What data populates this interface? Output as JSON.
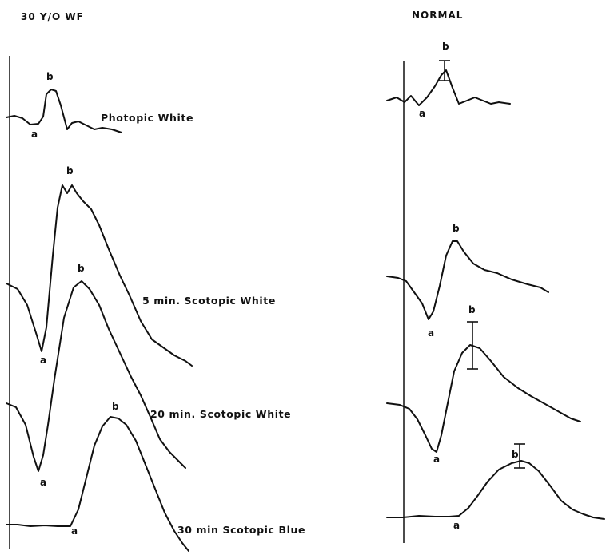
{
  "figure": {
    "left_title": "30 Y/O WF",
    "right_title": "NORMAL"
  },
  "chart_data": {
    "type": "line",
    "panels": [
      {
        "name": "30 Y/O WF",
        "traces": [
          {
            "label": "Photopic White",
            "a_label": "a",
            "b_label": "b",
            "pts": [
              [
                8,
                147
              ],
              [
                18,
                145
              ],
              [
                28,
                148
              ],
              [
                38,
                156
              ],
              [
                48,
                155
              ],
              [
                54,
                146
              ],
              [
                58,
                118
              ],
              [
                64,
                112
              ],
              [
                70,
                114
              ],
              [
                76,
                132
              ],
              [
                84,
                162
              ],
              [
                90,
                154
              ],
              [
                98,
                152
              ],
              [
                108,
                157
              ],
              [
                118,
                162
              ],
              [
                128,
                160
              ],
              [
                140,
                162
              ],
              [
                152,
                166
              ]
            ]
          },
          {
            "label": "5 min. Scotopic White",
            "a_label": "a",
            "b_label": "b",
            "pts": [
              [
                8,
                355
              ],
              [
                22,
                362
              ],
              [
                34,
                382
              ],
              [
                46,
                420
              ],
              [
                52,
                440
              ],
              [
                58,
                410
              ],
              [
                66,
                320
              ],
              [
                72,
                260
              ],
              [
                78,
                232
              ],
              [
                84,
                242
              ],
              [
                90,
                232
              ],
              [
                96,
                242
              ],
              [
                104,
                252
              ],
              [
                114,
                262
              ],
              [
                124,
                282
              ],
              [
                136,
                312
              ],
              [
                150,
                345
              ],
              [
                162,
                370
              ],
              [
                176,
                402
              ],
              [
                190,
                425
              ],
              [
                204,
                435
              ],
              [
                218,
                445
              ],
              [
                232,
                452
              ],
              [
                240,
                458
              ]
            ]
          },
          {
            "label": "20 min. Scotopic White",
            "a_label": "a",
            "b_label": "b",
            "pts": [
              [
                8,
                505
              ],
              [
                20,
                510
              ],
              [
                32,
                532
              ],
              [
                42,
                572
              ],
              [
                48,
                590
              ],
              [
                54,
                570
              ],
              [
                60,
                532
              ],
              [
                68,
                475
              ],
              [
                80,
                398
              ],
              [
                92,
                360
              ],
              [
                102,
                352
              ],
              [
                112,
                362
              ],
              [
                124,
                382
              ],
              [
                136,
                412
              ],
              [
                150,
                442
              ],
              [
                164,
                472
              ],
              [
                176,
                495
              ],
              [
                188,
                522
              ],
              [
                200,
                550
              ],
              [
                212,
                566
              ],
              [
                224,
                578
              ],
              [
                232,
                586
              ]
            ]
          },
          {
            "label": "30 min Scotopic Blue",
            "a_label": "a",
            "b_label": "b",
            "pts": [
              [
                8,
                657
              ],
              [
                22,
                657
              ],
              [
                38,
                659
              ],
              [
                56,
                658
              ],
              [
                72,
                659
              ],
              [
                88,
                659
              ],
              [
                98,
                638
              ],
              [
                108,
                598
              ],
              [
                118,
                558
              ],
              [
                128,
                534
              ],
              [
                138,
                522
              ],
              [
                148,
                524
              ],
              [
                158,
                532
              ],
              [
                170,
                552
              ],
              [
                182,
                582
              ],
              [
                194,
                612
              ],
              [
                206,
                642
              ],
              [
                218,
                665
              ],
              [
                228,
                680
              ],
              [
                236,
                690
              ]
            ]
          }
        ]
      },
      {
        "name": "NORMAL",
        "traces": [
          {
            "label": "",
            "a_label": "a",
            "b_label": "b",
            "pts": [
              [
                484,
                126
              ],
              [
                496,
                122
              ],
              [
                506,
                128
              ],
              [
                514,
                120
              ],
              [
                524,
                132
              ],
              [
                534,
                122
              ],
              [
                544,
                108
              ],
              [
                552,
                94
              ],
              [
                558,
                88
              ],
              [
                566,
                110
              ],
              [
                574,
                130
              ],
              [
                584,
                126
              ],
              [
                594,
                122
              ],
              [
                604,
                126
              ],
              [
                614,
                130
              ],
              [
                624,
                128
              ],
              [
                638,
                130
              ]
            ]
          },
          {
            "label": "",
            "a_label": "a",
            "b_label": "b",
            "pts": [
              [
                484,
                346
              ],
              [
                498,
                348
              ],
              [
                508,
                352
              ],
              [
                518,
                366
              ],
              [
                528,
                380
              ],
              [
                536,
                400
              ],
              [
                542,
                390
              ],
              [
                550,
                358
              ],
              [
                558,
                320
              ],
              [
                566,
                302
              ],
              [
                572,
                302
              ],
              [
                580,
                315
              ],
              [
                592,
                330
              ],
              [
                606,
                338
              ],
              [
                622,
                342
              ],
              [
                640,
                350
              ],
              [
                660,
                356
              ],
              [
                676,
                360
              ],
              [
                686,
                366
              ]
            ]
          },
          {
            "label": "",
            "a_label": "a",
            "b_label": "b",
            "pts": [
              [
                484,
                505
              ],
              [
                500,
                507
              ],
              [
                512,
                512
              ],
              [
                522,
                525
              ],
              [
                532,
                545
              ],
              [
                540,
                562
              ],
              [
                546,
                566
              ],
              [
                552,
                545
              ],
              [
                560,
                505
              ],
              [
                568,
                465
              ],
              [
                578,
                442
              ],
              [
                588,
                432
              ],
              [
                600,
                436
              ],
              [
                614,
                452
              ],
              [
                630,
                472
              ],
              [
                648,
                486
              ],
              [
                664,
                496
              ],
              [
                682,
                506
              ],
              [
                698,
                515
              ],
              [
                714,
                524
              ],
              [
                726,
                528
              ]
            ]
          },
          {
            "label": "",
            "a_label": "a",
            "b_label": "b",
            "pts": [
              [
                484,
                648
              ],
              [
                504,
                648
              ],
              [
                524,
                646
              ],
              [
                544,
                647
              ],
              [
                562,
                647
              ],
              [
                574,
                646
              ],
              [
                586,
                636
              ],
              [
                598,
                620
              ],
              [
                610,
                603
              ],
              [
                624,
                588
              ],
              [
                640,
                580
              ],
              [
                652,
                577
              ],
              [
                662,
                580
              ],
              [
                674,
                590
              ],
              [
                688,
                608
              ],
              [
                702,
                627
              ],
              [
                716,
                638
              ],
              [
                730,
                644
              ],
              [
                742,
                648
              ],
              [
                756,
                650
              ]
            ]
          }
        ]
      }
    ]
  },
  "colors": {
    "ink": "#111111",
    "background": "#ffffff"
  },
  "wave_letters": {
    "a": "a",
    "b": "b"
  }
}
